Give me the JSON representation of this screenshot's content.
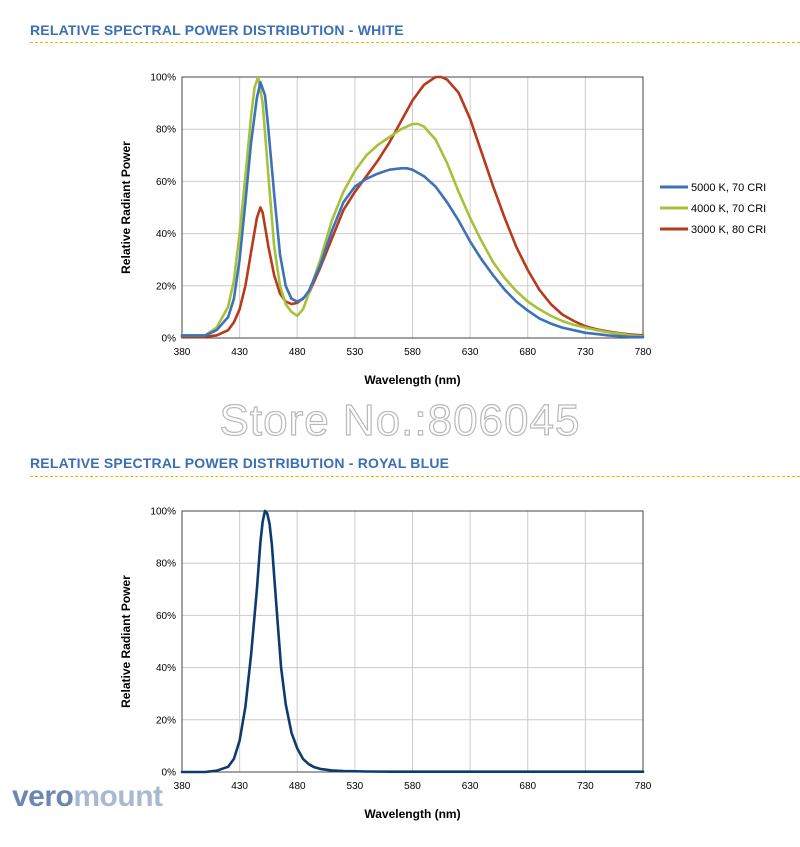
{
  "colors": {
    "title": "#3a6eb5",
    "dash": "#e8b800",
    "grid": "#cccccc",
    "text": "#000000"
  },
  "sections": [
    {
      "title": "RELATIVE SPECTRAL POWER DISTRIBUTION - WHITE"
    },
    {
      "title": "RELATIVE SPECTRAL POWER DISTRIBUTION - ROYAL BLUE"
    }
  ],
  "watermark": "Store No.:806045",
  "logo": {
    "part1": "vero",
    "part2": "mount",
    "color1": "#6e87b0",
    "color2": "#a8bad2"
  },
  "chart_data": [
    {
      "type": "line",
      "title": "",
      "xlabel": "Wavelength (nm)",
      "ylabel": "Relative Radiant Power",
      "xlim": [
        380,
        780
      ],
      "ylim": [
        0,
        100
      ],
      "xticks": [
        380,
        430,
        480,
        530,
        580,
        630,
        680,
        730,
        780
      ],
      "yticks": [
        0,
        20,
        40,
        60,
        80,
        100
      ],
      "ytick_suffix": "%",
      "grid": true,
      "legend_position": "right",
      "series": [
        {
          "name": "5000 K, 70 CRI",
          "color": "#3d72b8",
          "x": [
            380,
            400,
            410,
            420,
            425,
            430,
            435,
            440,
            445,
            448,
            452,
            455,
            460,
            465,
            470,
            475,
            480,
            485,
            490,
            500,
            510,
            520,
            530,
            540,
            550,
            560,
            570,
            575,
            580,
            590,
            600,
            610,
            620,
            630,
            640,
            650,
            660,
            670,
            680,
            690,
            700,
            710,
            720,
            730,
            740,
            750,
            760,
            770,
            780
          ],
          "y": [
            1,
            1,
            3,
            8,
            15,
            30,
            52,
            75,
            92,
            98,
            93,
            80,
            55,
            32,
            20,
            15,
            14,
            15,
            18,
            28,
            41,
            52,
            58,
            61,
            63,
            64.5,
            65,
            65,
            64.5,
            62,
            58,
            52,
            45,
            37,
            30,
            24,
            18.5,
            14,
            10.5,
            7.5,
            5.5,
            4,
            3,
            2,
            1.5,
            1,
            0.7,
            0.4,
            0.3
          ]
        },
        {
          "name": "4000 K, 70 CRI",
          "color": "#a5c23a",
          "x": [
            380,
            400,
            410,
            420,
            425,
            430,
            435,
            440,
            443,
            446,
            450,
            455,
            460,
            465,
            470,
            475,
            480,
            485,
            490,
            500,
            510,
            520,
            530,
            540,
            550,
            560,
            570,
            580,
            585,
            590,
            600,
            610,
            620,
            630,
            640,
            650,
            660,
            670,
            680,
            690,
            700,
            710,
            720,
            730,
            740,
            750,
            760,
            770,
            780
          ],
          "y": [
            1,
            1,
            4,
            12,
            22,
            40,
            62,
            85,
            96,
            100,
            90,
            62,
            35,
            20,
            13,
            10,
            8.5,
            11,
            17,
            30,
            45,
            56,
            64,
            70,
            74,
            77,
            80,
            82,
            82,
            81,
            76,
            67,
            56,
            46,
            37,
            29,
            23,
            18,
            14,
            11,
            8.5,
            6.5,
            5,
            4,
            3,
            2.2,
            1.6,
            1,
            0.6
          ]
        },
        {
          "name": "3000 K, 80 CRI",
          "color": "#b83a1e",
          "x": [
            380,
            400,
            410,
            420,
            425,
            430,
            435,
            440,
            445,
            448,
            450,
            455,
            460,
            465,
            470,
            475,
            480,
            490,
            500,
            510,
            520,
            530,
            540,
            550,
            560,
            570,
            580,
            590,
            600,
            605,
            610,
            620,
            630,
            640,
            650,
            660,
            670,
            680,
            690,
            700,
            710,
            720,
            730,
            740,
            750,
            760,
            770,
            780
          ],
          "y": [
            0.5,
            0.5,
            1,
            3,
            6,
            11,
            20,
            33,
            46,
            50,
            48,
            35,
            24,
            17,
            14,
            13,
            13.5,
            17,
            27,
            38,
            49,
            56,
            62,
            68,
            75,
            83,
            91,
            97,
            100,
            100,
            99,
            94,
            84,
            71,
            58,
            46,
            35,
            26,
            18.5,
            13,
            9,
            6.5,
            4.5,
            3.3,
            2.5,
            1.8,
            1.3,
            1
          ]
        }
      ]
    },
    {
      "type": "line",
      "title": "",
      "xlabel": "Wavelength (nm)",
      "ylabel": "Relative Radiant Power",
      "xlim": [
        380,
        780
      ],
      "ylim": [
        0,
        100
      ],
      "xticks": [
        380,
        430,
        480,
        530,
        580,
        630,
        680,
        730,
        780
      ],
      "yticks": [
        0,
        20,
        40,
        60,
        80,
        100
      ],
      "ytick_suffix": "%",
      "grid": true,
      "series": [
        {
          "color": "#0d3b6e",
          "x": [
            380,
            400,
            410,
            420,
            425,
            430,
            435,
            440,
            445,
            448,
            450,
            452,
            454,
            456,
            458,
            460,
            463,
            466,
            470,
            475,
            480,
            485,
            490,
            495,
            500,
            510,
            520,
            540,
            560,
            600,
            650,
            700,
            780
          ],
          "y": [
            0,
            0,
            0.5,
            2,
            5,
            12,
            25,
            45,
            70,
            88,
            96,
            100,
            99,
            95,
            87,
            75,
            57,
            40,
            26,
            15,
            9,
            5,
            3,
            1.8,
            1.2,
            0.6,
            0.4,
            0.2,
            0.1,
            0.1,
            0.1,
            0.1,
            0.1
          ]
        }
      ]
    }
  ]
}
